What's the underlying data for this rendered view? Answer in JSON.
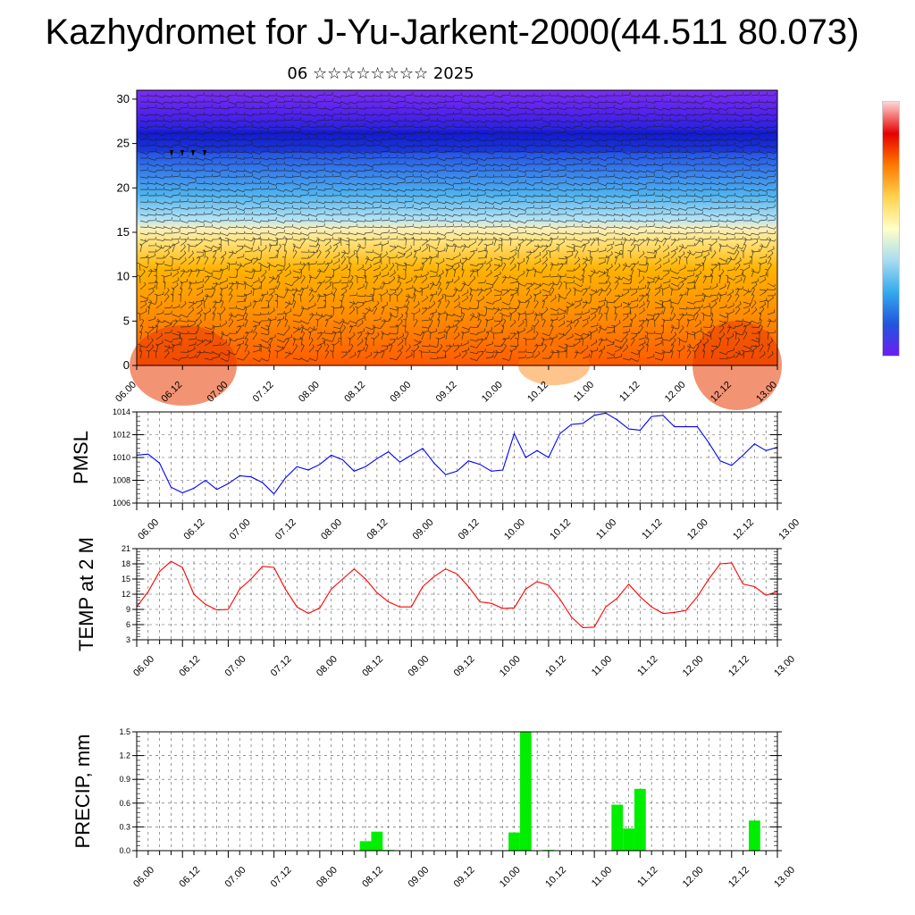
{
  "header": {
    "title": "Kazhydromet for J-Yu-Jarkent-2000(44.511 80.073)",
    "date_text": "06 ☆☆☆☆☆☆☆☆ 2025"
  },
  "time_ticks": [
    "06.00",
    "06.12",
    "07.00",
    "07.12",
    "08.00",
    "08.12",
    "09.00",
    "09.12",
    "10.00",
    "10.12",
    "11.00",
    "11.12",
    "12.00",
    "12.12",
    "13.00"
  ],
  "colors": {
    "pmsl_line": "#0000ff",
    "temp_line": "#ff0000",
    "precip_bar": "#00ee00",
    "colorbar_stops": [
      "#ffd6d6",
      "#e60000",
      "#ff7a00",
      "#ffd34d",
      "#ffffc8",
      "#a8dcf0",
      "#33aaee",
      "#2255dd",
      "#6a1ff0"
    ]
  },
  "chart_data": [
    {
      "type": "heatmap",
      "title": "",
      "xlabel": "",
      "ylabel": "",
      "xlim": [
        "06.00",
        "13.00"
      ],
      "ylim": [
        0,
        31
      ],
      "yticks": [
        0,
        5,
        10,
        15,
        20,
        25,
        30
      ],
      "xticks": [
        "06.00",
        "06.12",
        "07.00",
        "07.12",
        "08.00",
        "08.12",
        "09.00",
        "09.12",
        "10.00",
        "10.12",
        "11.00",
        "11.12",
        "12.00",
        "12.12",
        "13.00"
      ],
      "colormap": "warm (red/orange) near ground transitioning to cold (blue/violet) above ~15",
      "overlay": "wind barbs",
      "grid": false
    },
    {
      "type": "line",
      "ylabel": "PMSL",
      "ylim": [
        1006,
        1014
      ],
      "yticks": [
        1006,
        1008,
        1010,
        1012,
        1014
      ],
      "grid": true,
      "x": [
        "06.00",
        "06.03",
        "06.06",
        "06.09",
        "06.12",
        "06.15",
        "06.18",
        "06.21",
        "07.00",
        "07.03",
        "07.06",
        "07.09",
        "07.12",
        "07.15",
        "07.18",
        "07.21",
        "08.00",
        "08.03",
        "08.06",
        "08.09",
        "08.12",
        "08.15",
        "08.18",
        "08.21",
        "09.00",
        "09.03",
        "09.06",
        "09.09",
        "09.12",
        "09.15",
        "09.18",
        "09.21",
        "10.00",
        "10.03",
        "10.06",
        "10.09",
        "10.12",
        "10.15",
        "10.18",
        "10.21",
        "11.00",
        "11.03",
        "11.06",
        "11.09",
        "11.12",
        "11.15",
        "11.18",
        "11.21",
        "12.00",
        "12.03",
        "12.06",
        "12.09",
        "12.12",
        "12.15",
        "12.18",
        "12.21",
        "13.00"
      ],
      "series": [
        {
          "values": [
            1010.2,
            1010.3,
            1009.5,
            1007.4,
            1006.9,
            1007.3,
            1008.0,
            1007.2,
            1007.7,
            1008.4,
            1008.3,
            1007.8,
            1006.8,
            1008.2,
            1009.2,
            1008.9,
            1009.4,
            1010.2,
            1009.8,
            1008.8,
            1009.2,
            1009.9,
            1010.5,
            1009.6,
            1010.2,
            1010.8,
            1009.5,
            1008.5,
            1008.8,
            1009.7,
            1009.4,
            1008.8,
            1008.9,
            1012.1,
            1010.0,
            1010.6,
            1010.0,
            1012.1,
            1012.9,
            1013.0,
            1013.7,
            1013.9,
            1013.3,
            1012.5,
            1012.4,
            1013.6,
            1013.7,
            1012.7,
            1012.7,
            1012.7,
            1011.3,
            1009.7,
            1009.3,
            1010.2,
            1011.2,
            1010.6,
            1010.9
          ]
        }
      ]
    },
    {
      "type": "line",
      "ylabel": "TEMP at 2 M",
      "ylim": [
        3,
        21
      ],
      "yticks": [
        3,
        6,
        9,
        12,
        15,
        18,
        21
      ],
      "grid": true,
      "x": [
        "06.00",
        "06.03",
        "06.06",
        "06.09",
        "06.12",
        "06.15",
        "06.18",
        "06.21",
        "07.00",
        "07.03",
        "07.06",
        "07.09",
        "07.12",
        "07.15",
        "07.18",
        "07.21",
        "08.00",
        "08.03",
        "08.06",
        "08.09",
        "08.12",
        "08.15",
        "08.18",
        "08.21",
        "09.00",
        "09.03",
        "09.06",
        "09.09",
        "09.12",
        "09.15",
        "09.18",
        "09.21",
        "10.00",
        "10.03",
        "10.06",
        "10.09",
        "10.12",
        "10.15",
        "10.18",
        "10.21",
        "11.00",
        "11.03",
        "11.06",
        "11.09",
        "11.12",
        "11.15",
        "11.18",
        "11.21",
        "12.00",
        "12.03",
        "12.06",
        "12.09",
        "12.12",
        "12.15",
        "12.18",
        "12.21",
        "13.00"
      ],
      "series": [
        {
          "values": [
            9.5,
            12.5,
            16.5,
            18.5,
            17.3,
            12.0,
            10.0,
            8.9,
            9.0,
            13.0,
            15.0,
            17.5,
            17.3,
            13.0,
            9.5,
            8.2,
            9.3,
            13.0,
            15.0,
            17.0,
            15.0,
            12.3,
            10.5,
            9.5,
            9.5,
            13.5,
            15.5,
            17.0,
            16.0,
            13.5,
            10.5,
            10.2,
            9.2,
            9.3,
            13.0,
            14.5,
            13.8,
            11.0,
            7.5,
            5.4,
            5.5,
            9.5,
            11.2,
            14.0,
            11.5,
            9.5,
            8.2,
            8.4,
            8.8,
            11.5,
            15.0,
            18.0,
            18.2,
            14.0,
            13.5,
            11.8,
            12.5
          ]
        }
      ]
    },
    {
      "type": "bar",
      "ylabel": "PRECIP, mm",
      "ylim": [
        0,
        1.5
      ],
      "yticks": [
        "0.0",
        "0.3",
        "0.6",
        "0.9",
        "1.2",
        "1.5"
      ],
      "grid": true,
      "x": [
        "06.00",
        "06.03",
        "06.06",
        "06.09",
        "06.12",
        "06.15",
        "06.18",
        "06.21",
        "07.00",
        "07.03",
        "07.06",
        "07.09",
        "07.12",
        "07.15",
        "07.18",
        "07.21",
        "08.00",
        "08.03",
        "08.06",
        "08.09",
        "08.12",
        "08.15",
        "08.18",
        "08.21",
        "09.00",
        "09.03",
        "09.06",
        "09.09",
        "09.12",
        "09.15",
        "09.18",
        "09.21",
        "10.00",
        "10.03",
        "10.06",
        "10.09",
        "10.12",
        "10.15",
        "10.18",
        "10.21",
        "11.00",
        "11.03",
        "11.06",
        "11.09",
        "11.12",
        "11.15",
        "11.18",
        "11.21",
        "12.00",
        "12.03",
        "12.06",
        "12.09",
        "12.12",
        "12.15",
        "12.18",
        "12.21",
        "13.00"
      ],
      "series": [
        {
          "values": [
            0,
            0,
            0,
            0,
            0,
            0,
            0,
            0,
            0,
            0,
            0,
            0,
            0,
            0,
            0,
            0,
            0,
            0,
            0,
            0,
            0.12,
            0.24,
            0.01,
            0,
            0,
            0,
            0,
            0,
            0,
            0,
            0,
            0,
            0,
            0.23,
            1.5,
            0,
            0.01,
            0,
            0,
            0,
            0,
            0,
            0.58,
            0.28,
            0.78,
            0,
            0,
            0,
            0,
            0,
            0,
            0,
            0,
            0,
            0.38,
            0,
            0
          ]
        }
      ]
    }
  ]
}
